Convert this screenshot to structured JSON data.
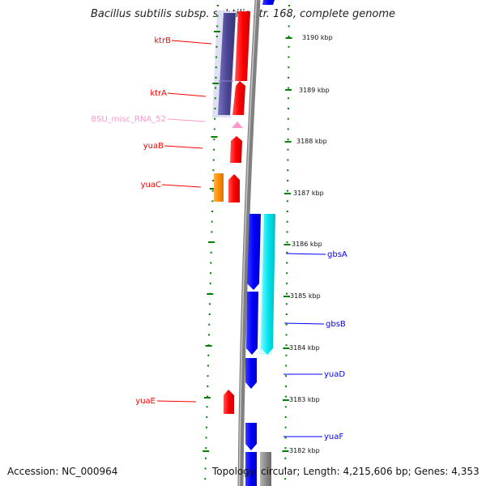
{
  "title": "Bacillus subtilis subsp. subtilis str. 168, complete genome",
  "accession": "Accession: NC_000964",
  "topology": "Topology: circular; Length: 4,215,606 bp; Genes: 4,353",
  "kbp_labels": [
    "3190 kbp",
    "3189 kbp",
    "3188 kbp",
    "3187 kbp",
    "3186 kbp",
    "3185 kbp",
    "3184 kbp",
    "3183 kbp",
    "3182 kbp"
  ],
  "genes": [
    {
      "name": "ktrB",
      "strand": "reverse",
      "color": "#ff0000"
    },
    {
      "name": "ktrA",
      "strand": "reverse",
      "color": "#ff0000"
    },
    {
      "name": "BSU_misc_RNA_52",
      "strand": "reverse",
      "color": "#ff99cc"
    },
    {
      "name": "yuaB",
      "strand": "reverse",
      "color": "#ff0000"
    },
    {
      "name": "yuaC",
      "strand": "reverse",
      "color": "#ff0000"
    },
    {
      "name": "gbsA",
      "strand": "forward",
      "color": "#0000ff"
    },
    {
      "name": "gbsB",
      "strand": "forward",
      "color": "#0000ff"
    },
    {
      "name": "yuaD",
      "strand": "forward",
      "color": "#0000ff"
    },
    {
      "name": "yuaE",
      "strand": "reverse",
      "color": "#ff0000"
    },
    {
      "name": "yuaF",
      "strand": "forward",
      "color": "#0000ff"
    }
  ],
  "colors": {
    "reverse_cds": "#ff0000",
    "forward_cds": "#0000ff",
    "misc_rna": "#ff99cc",
    "orf_reverse": "#4b4796",
    "orf_reverse_alt": "#ff8c00",
    "orf_forward": "#00e5ee",
    "backbone": "#8c8c8c",
    "tick": "#008000"
  }
}
